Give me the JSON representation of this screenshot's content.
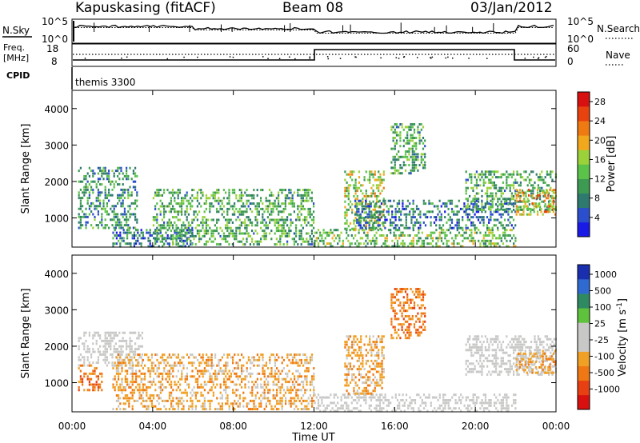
{
  "header": {
    "title": "Kapuskasing (fitACF)",
    "beam": "Beam 08",
    "date": "03/Jan/2012"
  },
  "meta_panel": {
    "nsky_label": "N.Sky",
    "nsky_ticks": [
      "10^5",
      "10^0"
    ],
    "nsearch_label": "N.Search",
    "freq_label": "Freq.",
    "freq_unit": "[MHz]",
    "freq_ticks": [
      "18",
      "8"
    ],
    "nave_label": "Nave",
    "nave_ticks": [
      "60",
      "0"
    ],
    "cpid_label": "CPID",
    "cpid_value": "themis 3300"
  },
  "colors": {
    "power_scale": [
      "#1a1ae6",
      "#2b4fcc",
      "#2f7a6e",
      "#3c9a52",
      "#5bc24a",
      "#9bd23a",
      "#f2a81c",
      "#f07a12",
      "#e8420f",
      "#d81010"
    ],
    "velocity_scale": [
      "#1a2fb0",
      "#2f6ad0",
      "#2f8a62",
      "#5fc23c",
      "#c8c8c6",
      "#c8c8c6",
      "#f0a025",
      "#ef7814",
      "#e84012",
      "#d81010"
    ],
    "ground_scatter": "#c8c8c6"
  },
  "chart_data": [
    {
      "type": "heatmap",
      "name": "power",
      "ylabel": "Slant Range [km]",
      "yticks": [
        "1000",
        "2000",
        "3000",
        "4000"
      ],
      "ylim": [
        200,
        4500
      ],
      "xlim": [
        "00:00",
        "24:00"
      ],
      "colorbar_label": "Power [dB]",
      "colorbar_ticks": [
        "4",
        "8",
        "12",
        "16",
        "20",
        "24",
        "28"
      ],
      "colorbar_range": [
        0,
        30
      ],
      "scatter_regions": [
        {
          "t": [
            0.3,
            3.2
          ],
          "range": [
            700,
            2400
          ],
          "power": 8
        },
        {
          "t": [
            2.0,
            6.0
          ],
          "range": [
            250,
            700
          ],
          "power": 6
        },
        {
          "t": [
            4.0,
            12.0
          ],
          "range": [
            250,
            1800
          ],
          "power": 10
        },
        {
          "t": [
            12.0,
            22.0
          ],
          "range": [
            250,
            700
          ],
          "power": 12
        },
        {
          "t": [
            13.5,
            15.5
          ],
          "range": [
            700,
            2300
          ],
          "power": 14
        },
        {
          "t": [
            15.8,
            17.5
          ],
          "range": [
            2200,
            3600
          ],
          "power": 10
        },
        {
          "t": [
            14.0,
            22.0
          ],
          "range": [
            700,
            1500
          ],
          "power": 6
        },
        {
          "t": [
            19.5,
            24.0
          ],
          "range": [
            1200,
            2300
          ],
          "power": 10
        },
        {
          "t": [
            22.0,
            24.0
          ],
          "range": [
            1100,
            1800
          ],
          "power": 18
        }
      ]
    },
    {
      "type": "heatmap",
      "name": "velocity",
      "ylabel": "Slant Range [km]",
      "yticks": [
        "1000",
        "2000",
        "3000",
        "4000"
      ],
      "ylim": [
        200,
        4500
      ],
      "xlim": [
        "00:00",
        "24:00"
      ],
      "xlabel": "Time UT",
      "xticks": [
        "00:00",
        "04:00",
        "08:00",
        "12:00",
        "16:00",
        "20:00",
        "00:00"
      ],
      "colorbar_label": "Velocity [m s^-1]",
      "colorbar_ticks": [
        "1000",
        "500",
        "100",
        "25",
        "-25",
        "-100",
        "-500",
        "-1000"
      ],
      "scatter_regions": [
        {
          "t": [
            0.3,
            3.5
          ],
          "range": [
            1500,
            2400
          ],
          "velocity": 0
        },
        {
          "t": [
            0.3,
            1.5
          ],
          "range": [
            800,
            1500
          ],
          "velocity": -300
        },
        {
          "t": [
            2.0,
            12.0
          ],
          "range": [
            250,
            1800
          ],
          "velocity": -80
        },
        {
          "t": [
            12.0,
            22.0
          ],
          "range": [
            250,
            700
          ],
          "velocity": 0
        },
        {
          "t": [
            13.5,
            15.5
          ],
          "range": [
            700,
            2300
          ],
          "velocity": -100
        },
        {
          "t": [
            15.8,
            17.5
          ],
          "range": [
            2200,
            3600
          ],
          "velocity": -400
        },
        {
          "t": [
            19.5,
            24.0
          ],
          "range": [
            1200,
            2300
          ],
          "velocity": 0
        },
        {
          "t": [
            22.0,
            24.0
          ],
          "range": [
            1300,
            1900
          ],
          "velocity": -200
        }
      ]
    }
  ]
}
